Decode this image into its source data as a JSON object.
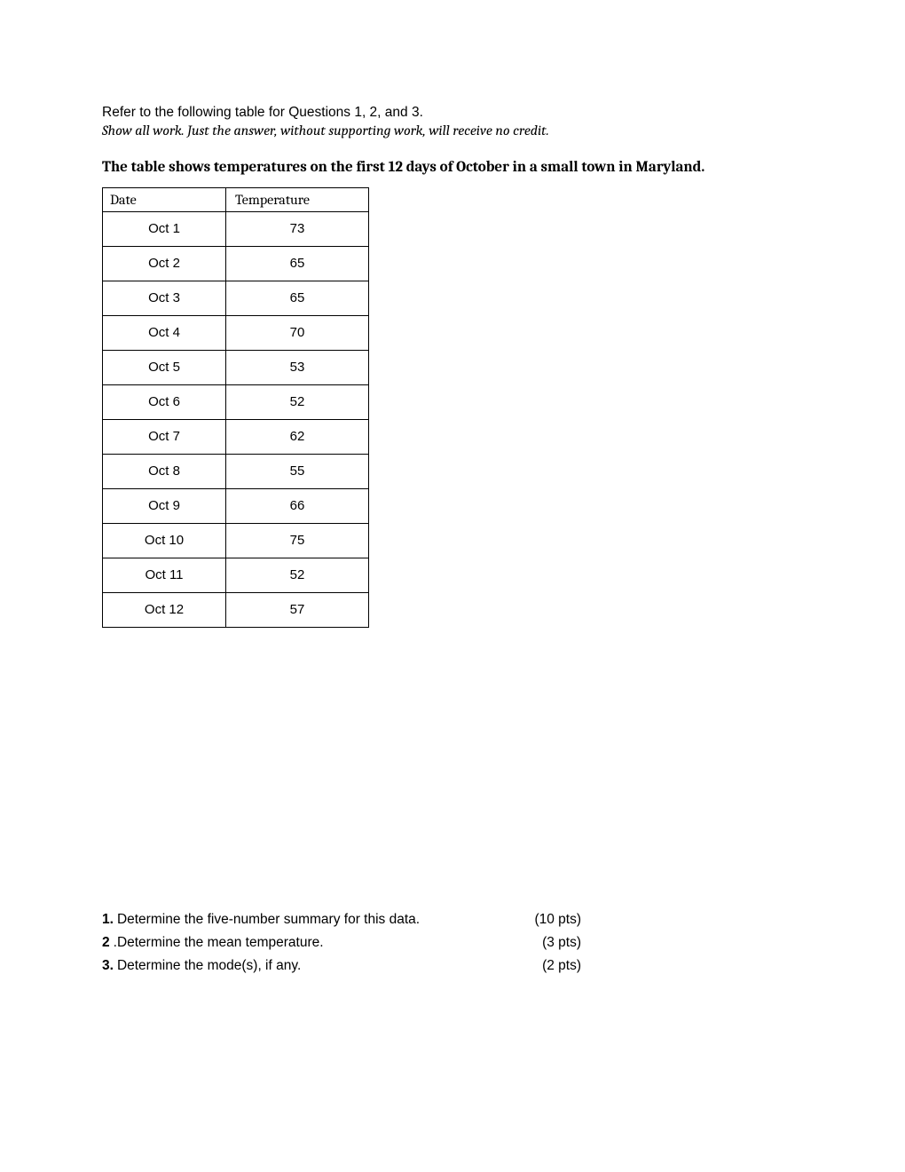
{
  "intro": {
    "line1": "Refer to the following table for Questions 1, 2, and 3.",
    "line2": "Show all work. Just the answer, without supporting work, will receive no credit."
  },
  "heading": "The table shows temperatures on the first 12 days of October in a small town in Maryland.",
  "table": {
    "columns": [
      "Date",
      "Temperature"
    ],
    "rows": [
      [
        "Oct 1",
        "73"
      ],
      [
        "Oct 2",
        "65"
      ],
      [
        "Oct 3",
        "65"
      ],
      [
        "Oct 4",
        "70"
      ],
      [
        "Oct 5",
        "53"
      ],
      [
        "Oct 6",
        "52"
      ],
      [
        "Oct 7",
        "62"
      ],
      [
        "Oct 8",
        "55"
      ],
      [
        "Oct 9",
        "66"
      ],
      [
        "Oct 10",
        "75"
      ],
      [
        "Oct 11",
        "52"
      ],
      [
        "Oct 12",
        "57"
      ]
    ],
    "border_color": "#000000",
    "header_font": "Cambria",
    "cell_font": "Verdana"
  },
  "questions": [
    {
      "num": "1.",
      "text": " Determine the five-number summary for this data.",
      "pts": "(10 pts)"
    },
    {
      "num": "2",
      "dot": ".",
      "text": " Determine the mean temperature.",
      "pts": "(3 pts)"
    },
    {
      "num": "3.",
      "text": " Determine the mode(s), if any.",
      "pts": "(2 pts)"
    }
  ]
}
